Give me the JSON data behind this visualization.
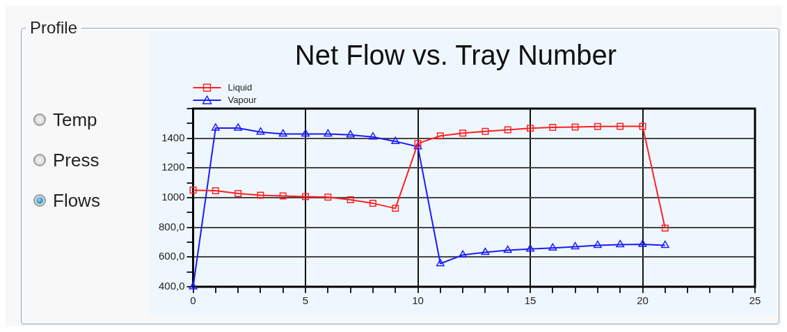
{
  "chart_data": {
    "type": "line",
    "title": "Net Flow vs. Tray Number",
    "annotations": [
      "Profile",
      "Temp",
      "Press",
      "Flows"
    ],
    "x": [
      0,
      1,
      2,
      3,
      4,
      5,
      6,
      7,
      8,
      9,
      10,
      11,
      12,
      13,
      14,
      15,
      16,
      17,
      18,
      19,
      20,
      21
    ],
    "series": [
      {
        "name": "Liquid",
        "color": "#ff2020",
        "marker": "square",
        "values": [
          1050,
          1047,
          1028,
          1016,
          1012,
          1007,
          1003,
          986,
          962,
          928,
          1365,
          1416,
          1435,
          1447,
          1457,
          1468,
          1473,
          1476,
          1479,
          1481,
          1481,
          795
        ]
      },
      {
        "name": "Vapour",
        "color": "#1a1aff",
        "marker": "triangle",
        "values": [
          400,
          1469,
          1469,
          1442,
          1429,
          1429,
          1429,
          1423,
          1409,
          1379,
          1343,
          556,
          614,
          632,
          646,
          654,
          661,
          670,
          679,
          684,
          686,
          679
        ]
      }
    ],
    "xlim": [
      0,
      25
    ],
    "xticks": [
      0,
      {
        "value": 1,
        "label": null
      },
      {
        "value": 2,
        "label": null
      },
      {
        "value": 3,
        "label": null
      },
      {
        "value": 4,
        "label": null
      },
      5,
      {
        "value": 6,
        "label": null
      },
      {
        "value": 7,
        "label": null
      },
      {
        "value": 8,
        "label": null
      },
      {
        "value": 9,
        "label": null
      },
      10,
      {
        "value": 11,
        "label": null
      },
      {
        "value": 12,
        "label": null
      },
      {
        "value": 13,
        "label": null
      },
      {
        "value": 14,
        "label": null
      },
      15,
      {
        "value": 16,
        "label": null
      },
      {
        "value": 17,
        "label": null
      },
      {
        "value": 18,
        "label": null
      },
      {
        "value": 19,
        "label": null
      },
      20,
      {
        "value": 21,
        "label": null
      },
      {
        "value": 22,
        "label": null
      },
      {
        "value": 23,
        "label": null
      },
      {
        "value": 24,
        "label": null
      },
      25
    ],
    "ylim": [
      400,
      1600
    ],
    "yticks": [
      {
        "value": 400,
        "label": "400,0"
      },
      {
        "value": 500,
        "label": null
      },
      {
        "value": 600,
        "label": "600,0"
      },
      {
        "value": 700,
        "label": null
      },
      {
        "value": 800,
        "label": "800,0"
      },
      {
        "value": 900,
        "label": null
      },
      1000,
      {
        "value": 1100,
        "label": null
      },
      1200,
      {
        "value": 1300,
        "label": null
      },
      1400,
      {
        "value": 1500,
        "label": null
      },
      {
        "value": 1600,
        "label": null
      }
    ],
    "grid": true,
    "legend": "top left"
  }
}
